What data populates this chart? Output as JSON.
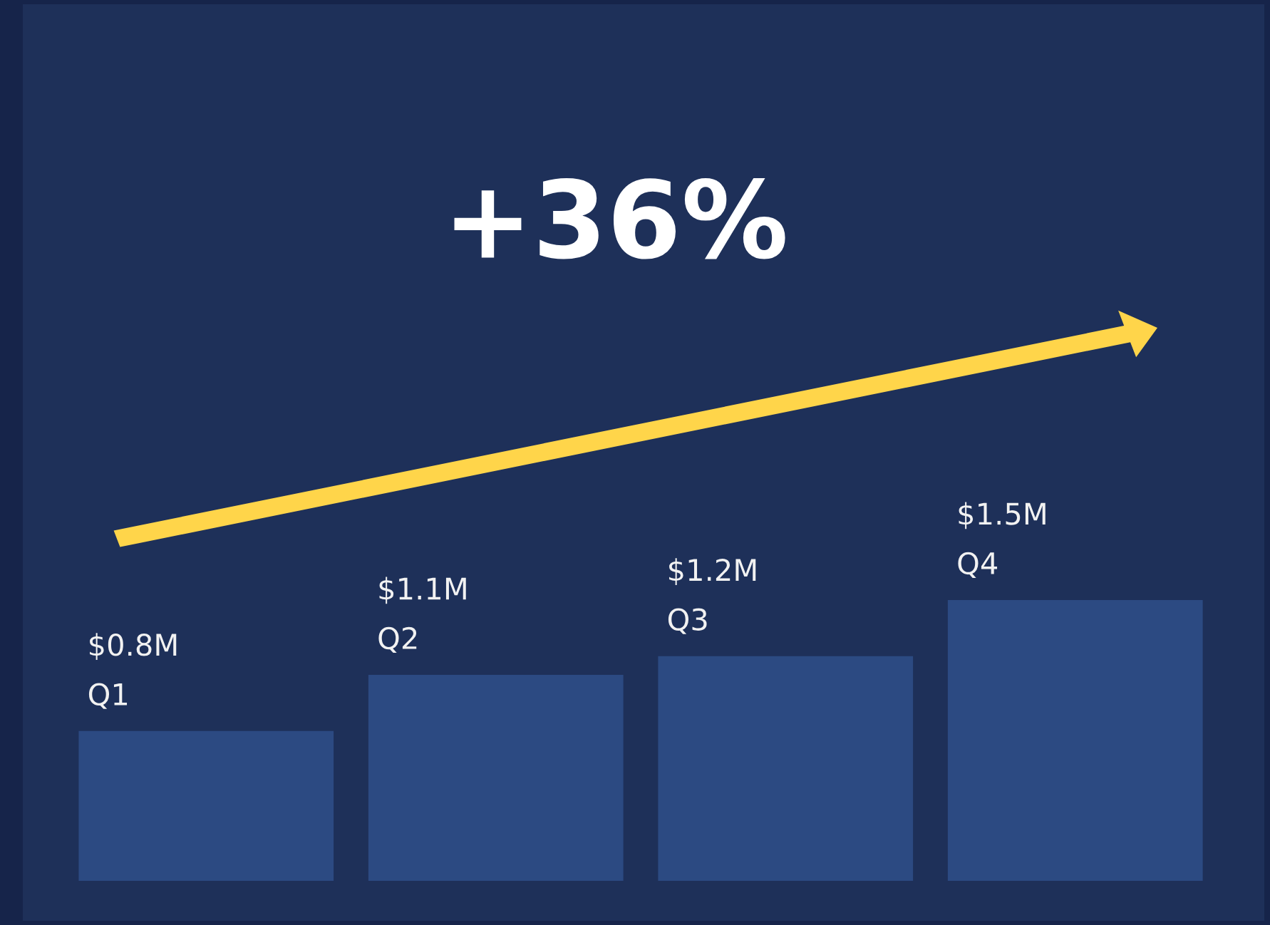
{
  "chart_data": {
    "type": "bar",
    "title": "+36%",
    "categories": [
      "Q1",
      "Q2",
      "Q3",
      "Q4"
    ],
    "values": [
      0.8,
      1.1,
      1.2,
      1.5
    ],
    "value_labels": [
      "$0.8M",
      "$1.1M",
      "$1.2M",
      "$1.5M"
    ],
    "color": "#2c4a82",
    "grid": false,
    "tick_labels": false
  }
}
